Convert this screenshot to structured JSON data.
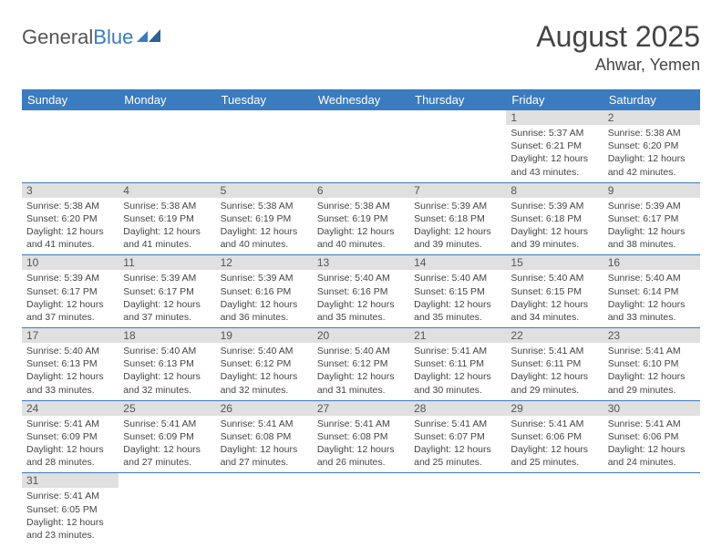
{
  "brand": {
    "part1": "General",
    "part2": "Blue"
  },
  "title": "August 2025",
  "location": "Ahwar, Yemen",
  "colors": {
    "header_bg": "#3b7bbf",
    "header_text": "#ffffff",
    "daynum_bg": "#e0e0e0",
    "text": "#444444",
    "row_border": "#3b7bbf"
  },
  "daynames": [
    "Sunday",
    "Monday",
    "Tuesday",
    "Wednesday",
    "Thursday",
    "Friday",
    "Saturday"
  ],
  "weeks": [
    [
      null,
      null,
      null,
      null,
      null,
      {
        "n": "1",
        "sr": "5:37 AM",
        "ss": "6:21 PM",
        "dl": "12 hours and 43 minutes."
      },
      {
        "n": "2",
        "sr": "5:38 AM",
        "ss": "6:20 PM",
        "dl": "12 hours and 42 minutes."
      }
    ],
    [
      {
        "n": "3",
        "sr": "5:38 AM",
        "ss": "6:20 PM",
        "dl": "12 hours and 41 minutes."
      },
      {
        "n": "4",
        "sr": "5:38 AM",
        "ss": "6:19 PM",
        "dl": "12 hours and 41 minutes."
      },
      {
        "n": "5",
        "sr": "5:38 AM",
        "ss": "6:19 PM",
        "dl": "12 hours and 40 minutes."
      },
      {
        "n": "6",
        "sr": "5:38 AM",
        "ss": "6:19 PM",
        "dl": "12 hours and 40 minutes."
      },
      {
        "n": "7",
        "sr": "5:39 AM",
        "ss": "6:18 PM",
        "dl": "12 hours and 39 minutes."
      },
      {
        "n": "8",
        "sr": "5:39 AM",
        "ss": "6:18 PM",
        "dl": "12 hours and 39 minutes."
      },
      {
        "n": "9",
        "sr": "5:39 AM",
        "ss": "6:17 PM",
        "dl": "12 hours and 38 minutes."
      }
    ],
    [
      {
        "n": "10",
        "sr": "5:39 AM",
        "ss": "6:17 PM",
        "dl": "12 hours and 37 minutes."
      },
      {
        "n": "11",
        "sr": "5:39 AM",
        "ss": "6:17 PM",
        "dl": "12 hours and 37 minutes."
      },
      {
        "n": "12",
        "sr": "5:39 AM",
        "ss": "6:16 PM",
        "dl": "12 hours and 36 minutes."
      },
      {
        "n": "13",
        "sr": "5:40 AM",
        "ss": "6:16 PM",
        "dl": "12 hours and 35 minutes."
      },
      {
        "n": "14",
        "sr": "5:40 AM",
        "ss": "6:15 PM",
        "dl": "12 hours and 35 minutes."
      },
      {
        "n": "15",
        "sr": "5:40 AM",
        "ss": "6:15 PM",
        "dl": "12 hours and 34 minutes."
      },
      {
        "n": "16",
        "sr": "5:40 AM",
        "ss": "6:14 PM",
        "dl": "12 hours and 33 minutes."
      }
    ],
    [
      {
        "n": "17",
        "sr": "5:40 AM",
        "ss": "6:13 PM",
        "dl": "12 hours and 33 minutes."
      },
      {
        "n": "18",
        "sr": "5:40 AM",
        "ss": "6:13 PM",
        "dl": "12 hours and 32 minutes."
      },
      {
        "n": "19",
        "sr": "5:40 AM",
        "ss": "6:12 PM",
        "dl": "12 hours and 32 minutes."
      },
      {
        "n": "20",
        "sr": "5:40 AM",
        "ss": "6:12 PM",
        "dl": "12 hours and 31 minutes."
      },
      {
        "n": "21",
        "sr": "5:41 AM",
        "ss": "6:11 PM",
        "dl": "12 hours and 30 minutes."
      },
      {
        "n": "22",
        "sr": "5:41 AM",
        "ss": "6:11 PM",
        "dl": "12 hours and 29 minutes."
      },
      {
        "n": "23",
        "sr": "5:41 AM",
        "ss": "6:10 PM",
        "dl": "12 hours and 29 minutes."
      }
    ],
    [
      {
        "n": "24",
        "sr": "5:41 AM",
        "ss": "6:09 PM",
        "dl": "12 hours and 28 minutes."
      },
      {
        "n": "25",
        "sr": "5:41 AM",
        "ss": "6:09 PM",
        "dl": "12 hours and 27 minutes."
      },
      {
        "n": "26",
        "sr": "5:41 AM",
        "ss": "6:08 PM",
        "dl": "12 hours and 27 minutes."
      },
      {
        "n": "27",
        "sr": "5:41 AM",
        "ss": "6:08 PM",
        "dl": "12 hours and 26 minutes."
      },
      {
        "n": "28",
        "sr": "5:41 AM",
        "ss": "6:07 PM",
        "dl": "12 hours and 25 minutes."
      },
      {
        "n": "29",
        "sr": "5:41 AM",
        "ss": "6:06 PM",
        "dl": "12 hours and 25 minutes."
      },
      {
        "n": "30",
        "sr": "5:41 AM",
        "ss": "6:06 PM",
        "dl": "12 hours and 24 minutes."
      }
    ],
    [
      {
        "n": "31",
        "sr": "5:41 AM",
        "ss": "6:05 PM",
        "dl": "12 hours and 23 minutes."
      },
      null,
      null,
      null,
      null,
      null,
      null
    ]
  ],
  "labels": {
    "sunrise": "Sunrise:",
    "sunset": "Sunset:",
    "daylight": "Daylight:"
  }
}
